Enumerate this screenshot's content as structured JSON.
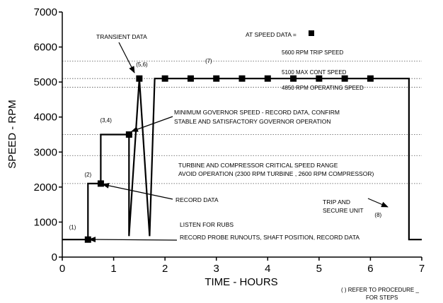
{
  "chart_data": {
    "type": "line",
    "xlabel": "TIME - HOURS",
    "ylabel": "SPEED - RPM",
    "xlim": [
      0,
      7
    ],
    "ylim": [
      0,
      7000
    ],
    "xticks": [
      0,
      1,
      2,
      3,
      4,
      5,
      6,
      7
    ],
    "yticks": [
      0,
      1000,
      2000,
      3000,
      4000,
      5000,
      6000,
      7000
    ],
    "grid": false,
    "series": [
      {
        "points": [
          [
            0,
            500
          ],
          [
            0.5,
            500
          ],
          [
            0.5,
            2100
          ],
          [
            0.75,
            2100
          ],
          [
            0.75,
            3500
          ],
          [
            1.3,
            3500
          ],
          [
            1.3,
            600
          ],
          [
            1.5,
            5100
          ],
          [
            1.7,
            600
          ],
          [
            1.8,
            5100
          ],
          [
            2.0,
            5100
          ],
          [
            2.5,
            5100
          ],
          [
            3.0,
            5100
          ],
          [
            3.5,
            5100
          ],
          [
            4.0,
            5100
          ],
          [
            4.5,
            5100
          ],
          [
            5.0,
            5100
          ],
          [
            5.5,
            5100
          ],
          [
            6.0,
            5100
          ],
          [
            6.75,
            5100
          ],
          [
            6.75,
            500
          ],
          [
            7.0,
            500
          ]
        ]
      }
    ],
    "markers": [
      [
        0.5,
        500
      ],
      [
        0.75,
        2100
      ],
      [
        1.3,
        3500
      ],
      [
        1.5,
        5100
      ],
      [
        2.0,
        5100
      ],
      [
        2.5,
        5100
      ],
      [
        3.0,
        5100
      ],
      [
        3.5,
        5100
      ],
      [
        4.0,
        5100
      ],
      [
        4.5,
        5100
      ],
      [
        5.0,
        5100
      ],
      [
        5.5,
        5100
      ],
      [
        6.0,
        5100
      ]
    ],
    "reference_lines": [
      {
        "y": 5600,
        "label": "5600 RPM TRIP SPEED"
      },
      {
        "y": 5100,
        "label": "5100 MAX CONT SPEED"
      },
      {
        "y": 4850,
        "label": "4850 RPM OPERATING SPEED"
      },
      {
        "y": 3500,
        "label": ""
      },
      {
        "y": 2900,
        "label": ""
      },
      {
        "y": 2100,
        "label": ""
      }
    ],
    "step_labels": [
      {
        "text": "(1)",
        "x": 0.2,
        "y": 800
      },
      {
        "text": "(2)",
        "x": 0.5,
        "y": 2300
      },
      {
        "text": "(3,4)",
        "x": 0.85,
        "y": 3850
      },
      {
        "text": "(5,6)",
        "x": 1.55,
        "y": 5450
      },
      {
        "text": "(7)",
        "x": 2.85,
        "y": 5550
      },
      {
        "text": "(8)",
        "x": 6.15,
        "y": 1150
      }
    ],
    "annotations": {
      "transient": "TRANSIENT DATA",
      "at_speed": "AT SPEED DATA =",
      "min_gov_1": "MINIMUM GOVERNOR SPEED - RECORD DATA, CONFIRM",
      "min_gov_2": "STABLE AND SATISFACTORY GOVERNOR OPERATION",
      "critical_1": "TURBINE AND COMPRESSOR CRITICAL SPEED RANGE",
      "critical_2": "AVOID OPERATION (2300 RPM TURBINE , 2600 RPM COMPRESSOR)",
      "record_data": "RECORD DATA",
      "trip_1": "TRIP AND",
      "trip_2": "SECURE UNIT",
      "rubs": "LISTEN FOR RUBS",
      "probe": "RECORD PROBE RUNOUTS, SHAFT POSITION, RECORD DATA"
    },
    "footnote": [
      "( ) REFER TO PROCEDURE _",
      "FOR STEPS"
    ]
  }
}
